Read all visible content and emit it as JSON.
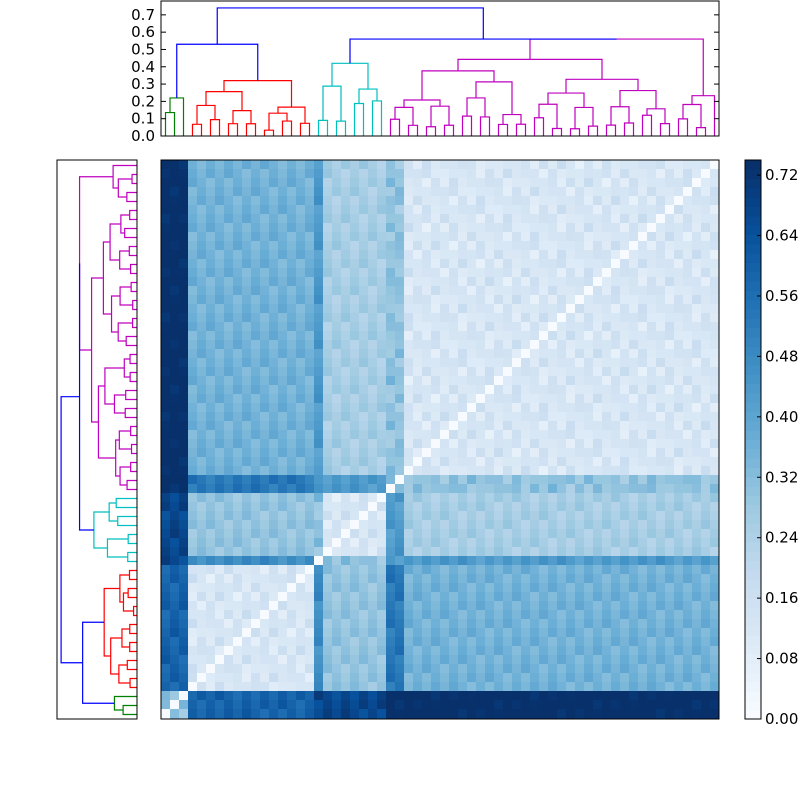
{
  "chart_data": [
    {
      "type": "dendrogram",
      "orientation": "top",
      "ylim": [
        0.0,
        0.78
      ],
      "yticks": [
        "0.0",
        "0.1",
        "0.2",
        "0.3",
        "0.4",
        "0.5",
        "0.6",
        "0.7"
      ],
      "clusters": [
        {
          "color": "#008000",
          "leaves": 3,
          "max_height": 0.22
        },
        {
          "color": "#ff0000",
          "leaves": 14,
          "max_height": 0.32
        },
        {
          "color": "#00bfbf",
          "leaves": 8,
          "max_height": 0.42
        },
        {
          "color": "#bf00bf",
          "leaves": 37,
          "max_height": 0.56
        }
      ],
      "links": [
        {
          "color": "#0000ff",
          "height": 0.53
        },
        {
          "color": "#0000ff",
          "height": 0.56
        },
        {
          "color": "#0000ff",
          "height": 0.74
        }
      ]
    },
    {
      "type": "dendrogram",
      "orientation": "left",
      "note_same_tree": true
    },
    {
      "type": "heatmap",
      "size": 62,
      "colormap": "Blues",
      "vmin": 0.0,
      "vmax": 0.74,
      "diagonal": 0.0,
      "colorbar_ticks": [
        "0.00",
        "0.08",
        "0.16",
        "0.24",
        "0.32",
        "0.40",
        "0.48",
        "0.56",
        "0.64",
        "0.72"
      ]
    }
  ]
}
